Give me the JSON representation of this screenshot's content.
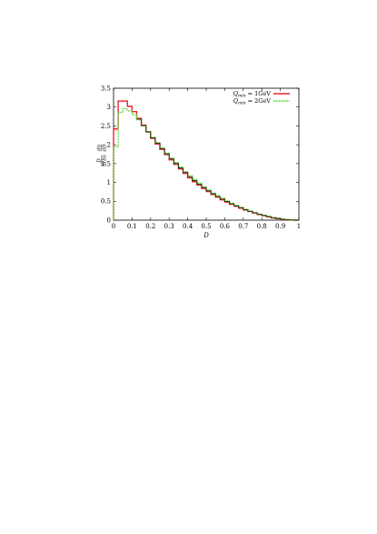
{
  "chart_data": {
    "type": "line",
    "style": "step-histogram",
    "xlabel": "D",
    "ylabel_prefix": "D",
    "ylabel_fraction": "dn",
    "ylabel_denominator": "n(D)",
    "ylabel_denominator2": "dD",
    "xlim": [
      0,
      1
    ],
    "ylim": [
      0,
      3.5
    ],
    "x_ticks": [
      "0",
      "0.1",
      "0.2",
      "0.3",
      "0.4",
      "0.5",
      "0.6",
      "0.7",
      "0.8",
      "0.9",
      "1"
    ],
    "y_ticks": [
      "0",
      "0.5",
      "1",
      "1.5",
      "2",
      "2.5",
      "3",
      "3.5"
    ],
    "legend_position": "top-right",
    "series": [
      {
        "name": "Q_min = 1GeV",
        "legend_main": "Q",
        "legend_sub": "min",
        "legend_rest": " = 1GeV",
        "color": "#e8242c",
        "bin_width": 0.025,
        "values": [
          2.42,
          3.16,
          3.16,
          3.02,
          2.88,
          2.7,
          2.52,
          2.34,
          2.17,
          2.02,
          1.88,
          1.74,
          1.6,
          1.48,
          1.36,
          1.24,
          1.12,
          1.02,
          0.93,
          0.84,
          0.76,
          0.68,
          0.61,
          0.54,
          0.48,
          0.42,
          0.37,
          0.32,
          0.27,
          0.23,
          0.19,
          0.15,
          0.12,
          0.09,
          0.06,
          0.04,
          0.02,
          0.01,
          0.005,
          0.0
        ]
      },
      {
        "name": "Q_min = 2GeV",
        "legend_main": "Q",
        "legend_sub": "min",
        "legend_rest": " = 2GeV",
        "color": "#66dd44",
        "bin_width": 0.025,
        "values": [
          1.95,
          2.86,
          2.96,
          2.9,
          2.8,
          2.66,
          2.5,
          2.35,
          2.2,
          2.06,
          1.92,
          1.78,
          1.65,
          1.53,
          1.41,
          1.29,
          1.18,
          1.08,
          0.98,
          0.89,
          0.8,
          0.72,
          0.65,
          0.58,
          0.51,
          0.45,
          0.39,
          0.34,
          0.29,
          0.24,
          0.2,
          0.16,
          0.13,
          0.1,
          0.07,
          0.05,
          0.03,
          0.015,
          0.006,
          0.0
        ]
      }
    ]
  }
}
